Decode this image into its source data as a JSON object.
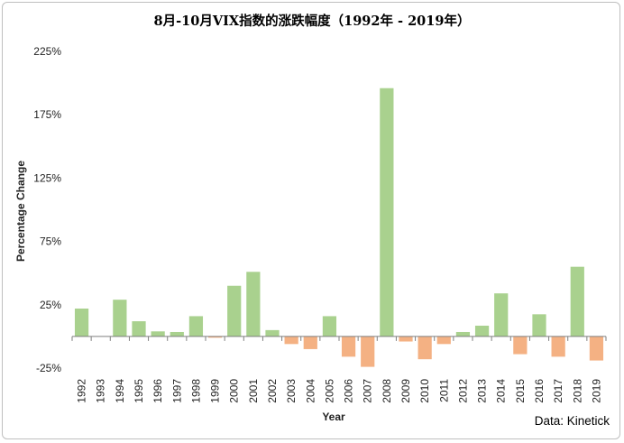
{
  "chart_data": {
    "type": "bar",
    "title": "8月-10月VIX指数的涨跌幅度（1992年 - 2019年）",
    "xlabel": "Year",
    "ylabel": "Percentage Change",
    "source": "Data: Kinetick",
    "ylim": [
      -25,
      225
    ],
    "yticks": [
      "225%",
      "175%",
      "125%",
      "75%",
      "25%",
      "-25%"
    ],
    "ytick_values": [
      225,
      175,
      125,
      75,
      25,
      -25
    ],
    "grid": false,
    "legend": "none",
    "colors": {
      "positive": "#a9d18e",
      "negative": "#f4b183",
      "axis": "#7f7f7f"
    },
    "categories": [
      "1992",
      "1993",
      "1994",
      "1995",
      "1996",
      "1997",
      "1998",
      "1999",
      "2000",
      "2001",
      "2002",
      "2003",
      "2004",
      "2005",
      "2006",
      "2007",
      "2008",
      "2009",
      "2010",
      "2011",
      "2012",
      "2013",
      "2014",
      "2015",
      "2016",
      "2017",
      "2018",
      "2019"
    ],
    "values": [
      22,
      0,
      29,
      12,
      4,
      3.5,
      16,
      -1,
      40,
      51,
      5,
      -6,
      -10,
      16,
      -16,
      -24,
      196,
      -4,
      -18,
      -6,
      3.5,
      8.5,
      34,
      -14,
      17.5,
      -16,
      55,
      -19
    ]
  }
}
